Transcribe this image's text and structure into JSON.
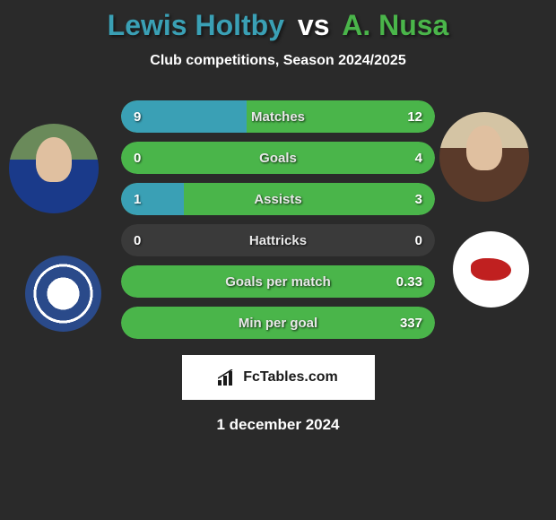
{
  "title": {
    "player1": "Lewis Holtby",
    "vs": "vs",
    "player2": "A. Nusa",
    "player1_color": "#3aa0b5",
    "player2_color": "#4ab54a"
  },
  "subtitle": "Club competitions, Season 2024/2025",
  "colors": {
    "pill_bg": "#3a3a3a",
    "left_fill": "#3aa0b5",
    "right_fill": "#4ab54a",
    "background": "#2a2a2a",
    "text": "#ffffff"
  },
  "stats": [
    {
      "label": "Matches",
      "left_val": "9",
      "right_val": "12",
      "left_pct": 40,
      "right_pct": 100
    },
    {
      "label": "Goals",
      "left_val": "0",
      "right_val": "4",
      "left_pct": 0,
      "right_pct": 100
    },
    {
      "label": "Assists",
      "left_val": "1",
      "right_val": "3",
      "left_pct": 20,
      "right_pct": 100
    },
    {
      "label": "Hattricks",
      "left_val": "0",
      "right_val": "0",
      "left_pct": 0,
      "right_pct": 0
    },
    {
      "label": "Goals per match",
      "left_val": "",
      "right_val": "0.33",
      "left_pct": 0,
      "right_pct": 100
    },
    {
      "label": "Min per goal",
      "left_val": "",
      "right_val": "337",
      "left_pct": 0,
      "right_pct": 100
    }
  ],
  "footer_brand": "FcTables.com",
  "date": "1 december 2024"
}
